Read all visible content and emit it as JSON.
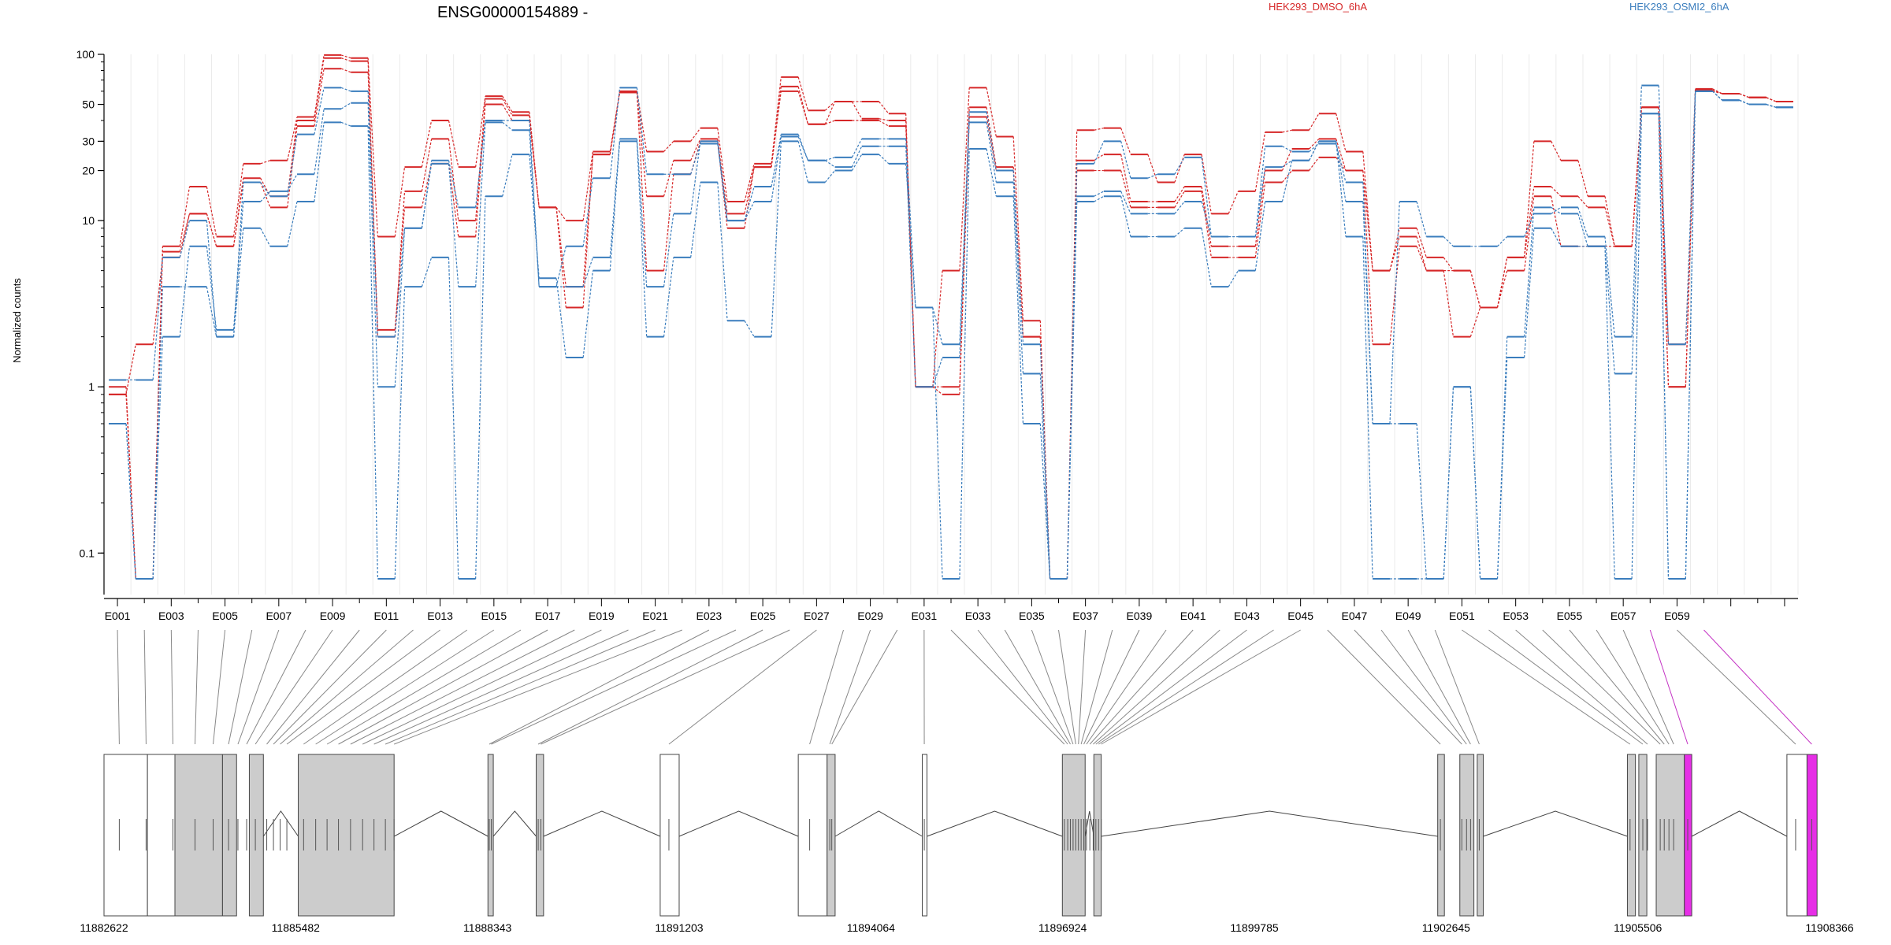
{
  "chart_data": {
    "type": "line",
    "title": "ENSG00000154889 -",
    "ylabel": "Normalized counts",
    "yscale": "log",
    "ylim": [
      0.07,
      100
    ],
    "y_ticks": [
      0.1,
      1,
      10,
      20,
      30,
      50,
      100
    ],
    "y_tick_labels": [
      "0.1",
      "1",
      "10",
      "20",
      "30",
      "50",
      "100"
    ],
    "legend": [
      {
        "name": "HEK293_DMSO_6hA",
        "color": "#d62728"
      },
      {
        "name": "HEK293_OSMI2_6hA",
        "color": "#3a7dbd"
      }
    ],
    "categories": [
      "E001",
      "E002",
      "E003",
      "E004",
      "E005",
      "E006",
      "E007",
      "E008",
      "E009",
      "E010",
      "E011",
      "E012",
      "E013",
      "E014",
      "E015",
      "E016",
      "E017",
      "E018",
      "E019",
      "E020",
      "E021",
      "E022",
      "E023",
      "E024",
      "E025",
      "E026",
      "E027",
      "E028",
      "E029",
      "E030",
      "E031",
      "E032",
      "E033",
      "E034",
      "E035",
      "E036",
      "E037",
      "E038",
      "E039",
      "E040",
      "E041",
      "E042",
      "E043",
      "E044",
      "E045",
      "E046",
      "E047",
      "E048",
      "E049",
      "E050",
      "E051",
      "E052",
      "E053",
      "E054",
      "E055",
      "E056",
      "E057",
      "E058",
      "E059",
      "E060",
      "E061",
      "E062",
      "E063"
    ],
    "category_labels_shown": [
      "E001",
      "E003",
      "E005",
      "E007",
      "E009",
      "E011",
      "E013",
      "E015",
      "E017",
      "E019",
      "E021",
      "E023",
      "E025",
      "E027",
      "E029",
      "E031",
      "E033",
      "E035",
      "E037",
      "E039",
      "E041",
      "E043",
      "E045",
      "E047",
      "E049",
      "E051",
      "E053",
      "E055",
      "E057",
      "E059"
    ],
    "series": [
      {
        "group": "HEK293_DMSO_6hA",
        "values": [
          1.0,
          0.07,
          7.0,
          16.0,
          8.0,
          22.0,
          23.0,
          42.0,
          99.0,
          95.0,
          8.0,
          21.0,
          40.0,
          21.0,
          56.0,
          45.0,
          12.0,
          10.0,
          26.0,
          60.0,
          26.0,
          30.0,
          36.0,
          13.0,
          22.0,
          73.0,
          46.0,
          52.0,
          52.0,
          44.0,
          1.0,
          5.0,
          63.0,
          32.0,
          2.5,
          0.07,
          35.0,
          36.0,
          25.0,
          17.0,
          25.0,
          11.0,
          15.0,
          34.0,
          35.0,
          44.0,
          26.0,
          5.0,
          9.0,
          6.0,
          5.0,
          3.0,
          6.0,
          30.0,
          23.0,
          14.0,
          7.0,
          48.0,
          1.0,
          62.0,
          58.0,
          55.0,
          52.0
        ]
      },
      {
        "group": "HEK293_DMSO_6hA",
        "values": [
          0.9,
          0.07,
          6.5,
          11.0,
          7.0,
          18.0,
          14.0,
          40.0,
          95.0,
          91.0,
          2.0,
          15.0,
          31.0,
          10.0,
          54.0,
          43.0,
          12.0,
          4.0,
          25.0,
          59.0,
          14.0,
          23.0,
          31.0,
          11.0,
          21.0,
          64.0,
          38.0,
          52.0,
          41.0,
          40.0,
          1.0,
          1.0,
          48.0,
          21.0,
          2.0,
          0.07,
          23.0,
          25.0,
          13.0,
          13.0,
          16.0,
          7.0,
          7.0,
          20.0,
          27.0,
          31.0,
          20.0,
          5.0,
          8.0,
          5.0,
          5.0,
          3.0,
          6.0,
          16.0,
          14.0,
          12.0,
          7.0,
          48.0,
          1.0,
          61.0,
          58.0,
          55.0,
          52.0
        ]
      },
      {
        "group": "HEK293_DMSO_6hA",
        "values": [
          0.9,
          1.8,
          6.0,
          11.0,
          7.0,
          17.0,
          12.0,
          37.0,
          82.0,
          78.0,
          2.2,
          12.0,
          22.0,
          8.0,
          50.0,
          40.0,
          12.0,
          3.0,
          25.0,
          59.0,
          5.0,
          19.0,
          30.0,
          9.0,
          21.0,
          60.0,
          38.0,
          40.0,
          40.0,
          37.0,
          1.0,
          0.9,
          42.0,
          20.0,
          2.0,
          0.07,
          20.0,
          20.0,
          12.0,
          12.0,
          15.0,
          6.0,
          6.0,
          17.0,
          20.0,
          24.0,
          20.0,
          1.8,
          7.0,
          5.0,
          2.0,
          3.0,
          5.0,
          14.0,
          7.0,
          7.0,
          7.0,
          48.0,
          1.8,
          60.0,
          58.0,
          55.0,
          52.0
        ]
      },
      {
        "group": "HEK293_OSMI2_6hA",
        "values": [
          1.1,
          1.1,
          6.0,
          10.0,
          2.0,
          17.0,
          14.0,
          33.0,
          63.0,
          60.0,
          2.0,
          9.0,
          23.0,
          12.0,
          40.0,
          40.0,
          4.0,
          7.0,
          18.0,
          63.0,
          19.0,
          19.0,
          29.0,
          10.0,
          16.0,
          33.0,
          23.0,
          24.0,
          31.0,
          31.0,
          3.0,
          1.8,
          45.0,
          20.0,
          1.8,
          0.07,
          22.0,
          30.0,
          18.0,
          19.0,
          24.0,
          8.0,
          8.0,
          28.0,
          26.0,
          29.0,
          17.0,
          0.6,
          13.0,
          8.0,
          7.0,
          7.0,
          8.0,
          11.0,
          12.0,
          8.0,
          2.0,
          65.0,
          1.8,
          60.0,
          53.0,
          50.0,
          48.0
        ]
      },
      {
        "group": "HEK293_OSMI2_6hA",
        "values": [
          0.6,
          0.07,
          2.0,
          7.0,
          2.2,
          13.0,
          15.0,
          19.0,
          47.0,
          51.0,
          1.0,
          9.0,
          22.0,
          4.0,
          39.0,
          35.0,
          4.0,
          4.0,
          6.0,
          31.0,
          4.0,
          11.0,
          30.0,
          10.0,
          13.0,
          32.0,
          23.0,
          21.0,
          28.0,
          28.0,
          1.0,
          1.5,
          39.0,
          17.0,
          1.2,
          0.07,
          14.0,
          15.0,
          11.0,
          11.0,
          13.0,
          8.0,
          8.0,
          21.0,
          23.0,
          30.0,
          13.0,
          0.6,
          0.6,
          0.07,
          1.0,
          0.07,
          2.0,
          12.0,
          11.0,
          7.0,
          1.2,
          44.0,
          0.07,
          60.0,
          53.0,
          50.0,
          48.0
        ]
      },
      {
        "group": "HEK293_OSMI2_6hA",
        "values": [
          0.6,
          0.07,
          4.0,
          4.0,
          2.0,
          9.0,
          7.0,
          13.0,
          39.0,
          37.0,
          0.07,
          4.0,
          6.0,
          0.07,
          14.0,
          25.0,
          4.5,
          1.5,
          5.0,
          30.0,
          2.0,
          6.0,
          17.0,
          2.5,
          2.0,
          30.0,
          17.0,
          20.0,
          25.0,
          22.0,
          3.0,
          0.07,
          27.0,
          14.0,
          0.6,
          0.07,
          13.0,
          14.0,
          8.0,
          8.0,
          9.0,
          4.0,
          5.0,
          13.0,
          23.0,
          30.0,
          8.0,
          0.07,
          0.07,
          0.07,
          1.0,
          0.07,
          1.5,
          9.0,
          7.0,
          7.0,
          0.07,
          44.0,
          0.07,
          60.0,
          53.0,
          50.0,
          48.0
        ]
      }
    ],
    "genomic_axis_ticks": [
      "11882622",
      "11885482",
      "11888343",
      "11891203",
      "11894064",
      "11896924",
      "11899785",
      "11902645",
      "11905506",
      "11908366"
    ],
    "genomic_range": [
      11882622,
      11908366
    ],
    "exons": [
      {
        "start": 11882622,
        "end": 11883270,
        "fill": "white"
      },
      {
        "start": 11883270,
        "end": 11883680,
        "fill": "white"
      },
      {
        "start": 11883680,
        "end": 11884390,
        "fill": "gray"
      },
      {
        "start": 11884390,
        "end": 11884600,
        "fill": "gray"
      },
      {
        "start": 11884790,
        "end": 11885000,
        "fill": "gray"
      },
      {
        "start": 11885520,
        "end": 11886950,
        "fill": "gray"
      },
      {
        "start": 11888350,
        "end": 11888430,
        "fill": "gray"
      },
      {
        "start": 11889070,
        "end": 11889180,
        "fill": "gray"
      },
      {
        "start": 11890920,
        "end": 11891203,
        "fill": "white"
      },
      {
        "start": 11892980,
        "end": 11893410,
        "fill": "white"
      },
      {
        "start": 11893410,
        "end": 11893530,
        "fill": "gray"
      },
      {
        "start": 11894830,
        "end": 11894900,
        "fill": "white"
      },
      {
        "start": 11896920,
        "end": 11897260,
        "fill": "gray"
      },
      {
        "start": 11897390,
        "end": 11897500,
        "fill": "gray"
      },
      {
        "start": 11902520,
        "end": 11902620,
        "fill": "gray"
      },
      {
        "start": 11902850,
        "end": 11903060,
        "fill": "gray"
      },
      {
        "start": 11903110,
        "end": 11903200,
        "fill": "gray"
      },
      {
        "start": 11905350,
        "end": 11905470,
        "fill": "gray"
      },
      {
        "start": 11905520,
        "end": 11905640,
        "fill": "gray"
      },
      {
        "start": 11905780,
        "end": 11906200,
        "fill": "gray"
      },
      {
        "start": 11906200,
        "end": 11906310,
        "fill": "magenta"
      },
      {
        "start": 11907730,
        "end": 11908030,
        "fill": "white"
      },
      {
        "start": 11908030,
        "end": 11908180,
        "fill": "magenta"
      }
    ],
    "introns": [
      [
        11885000,
        11885520
      ],
      [
        11886950,
        11888350
      ],
      [
        11888430,
        11889070
      ],
      [
        11889180,
        11890920
      ],
      [
        11891203,
        11892980
      ],
      [
        11893530,
        11894830
      ],
      [
        11894900,
        11896920
      ],
      [
        11897260,
        11897390
      ],
      [
        11897500,
        11902520
      ],
      [
        11903200,
        11905350
      ],
      [
        11906310,
        11907730
      ]
    ],
    "connector_exon_positions": [
      11882850,
      11883250,
      11883650,
      11883980,
      11884250,
      11884480,
      11884620,
      11884750,
      11884880,
      11885050,
      11885150,
      11885250,
      11885350,
      11885600,
      11885780,
      11885950,
      11886120,
      11886300,
      11886480,
      11886650,
      11886820,
      11886950,
      11888370,
      11888400,
      11889100,
      11889140,
      11891050,
      11893150,
      11893450,
      11893480,
      11894860,
      11896950,
      11897000,
      11897040,
      11897080,
      11897120,
      11897160,
      11897200,
      11897240,
      11897280,
      11897330,
      11897380,
      11897420,
      11897460,
      11897500,
      11902560,
      11902880,
      11902950,
      11903010,
      11903140,
      11905390,
      11905580,
      11905650,
      11905840,
      11905900,
      11905970,
      11906040,
      11906250,
      11907860,
      11908100
    ],
    "connector_colors_magenta": [
      57,
      59
    ]
  }
}
